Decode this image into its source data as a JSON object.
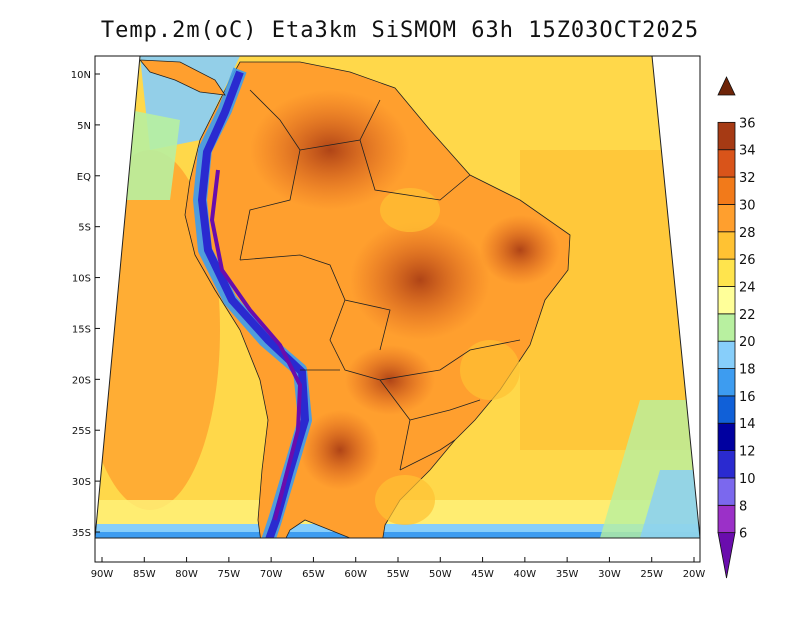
{
  "title": "Temp.2m(oC) Eta3km SiSMOM 63h 15Z03OCT2025",
  "map": {
    "lon_range": [
      -90,
      -20
    ],
    "lat_range": [
      -37.5,
      11
    ],
    "lon_ticks": [
      {
        "value": -90,
        "label": "90W"
      },
      {
        "value": -85,
        "label": "85W"
      },
      {
        "value": -80,
        "label": "80W"
      },
      {
        "value": -75,
        "label": "75W"
      },
      {
        "value": -70,
        "label": "70W"
      },
      {
        "value": -65,
        "label": "65W"
      },
      {
        "value": -60,
        "label": "60W"
      },
      {
        "value": -55,
        "label": "55W"
      },
      {
        "value": -50,
        "label": "50W"
      },
      {
        "value": -45,
        "label": "45W"
      },
      {
        "value": -40,
        "label": "40W"
      },
      {
        "value": -35,
        "label": "35W"
      },
      {
        "value": -30,
        "label": "30W"
      },
      {
        "value": -25,
        "label": "25W"
      },
      {
        "value": -20,
        "label": "20W"
      }
    ],
    "lat_ticks": [
      {
        "value": 10,
        "label": "10N"
      },
      {
        "value": 5,
        "label": "5N"
      },
      {
        "value": 0,
        "label": "EQ"
      },
      {
        "value": -5,
        "label": "5S"
      },
      {
        "value": -10,
        "label": "10S"
      },
      {
        "value": -15,
        "label": "15S"
      },
      {
        "value": -20,
        "label": "20S"
      },
      {
        "value": -25,
        "label": "25S"
      },
      {
        "value": -30,
        "label": "30S"
      },
      {
        "value": -35,
        "label": "35S"
      }
    ]
  },
  "colorbar": {
    "levels": [
      "6",
      "8",
      "10",
      "12",
      "14",
      "16",
      "18",
      "20",
      "22",
      "24",
      "26",
      "28",
      "30",
      "32",
      "34",
      "36"
    ],
    "colors": [
      "#6a0dad",
      "#9b30c8",
      "#7b68ee",
      "#2a2ad0",
      "#0000a0",
      "#1060d8",
      "#3d9cf0",
      "#87cefa",
      "#b8f0a0",
      "#ffff99",
      "#ffe44d",
      "#ffc233",
      "#ff9f2e",
      "#f27a1a",
      "#d9541a",
      "#a63a14",
      "#6e2408"
    ]
  }
}
